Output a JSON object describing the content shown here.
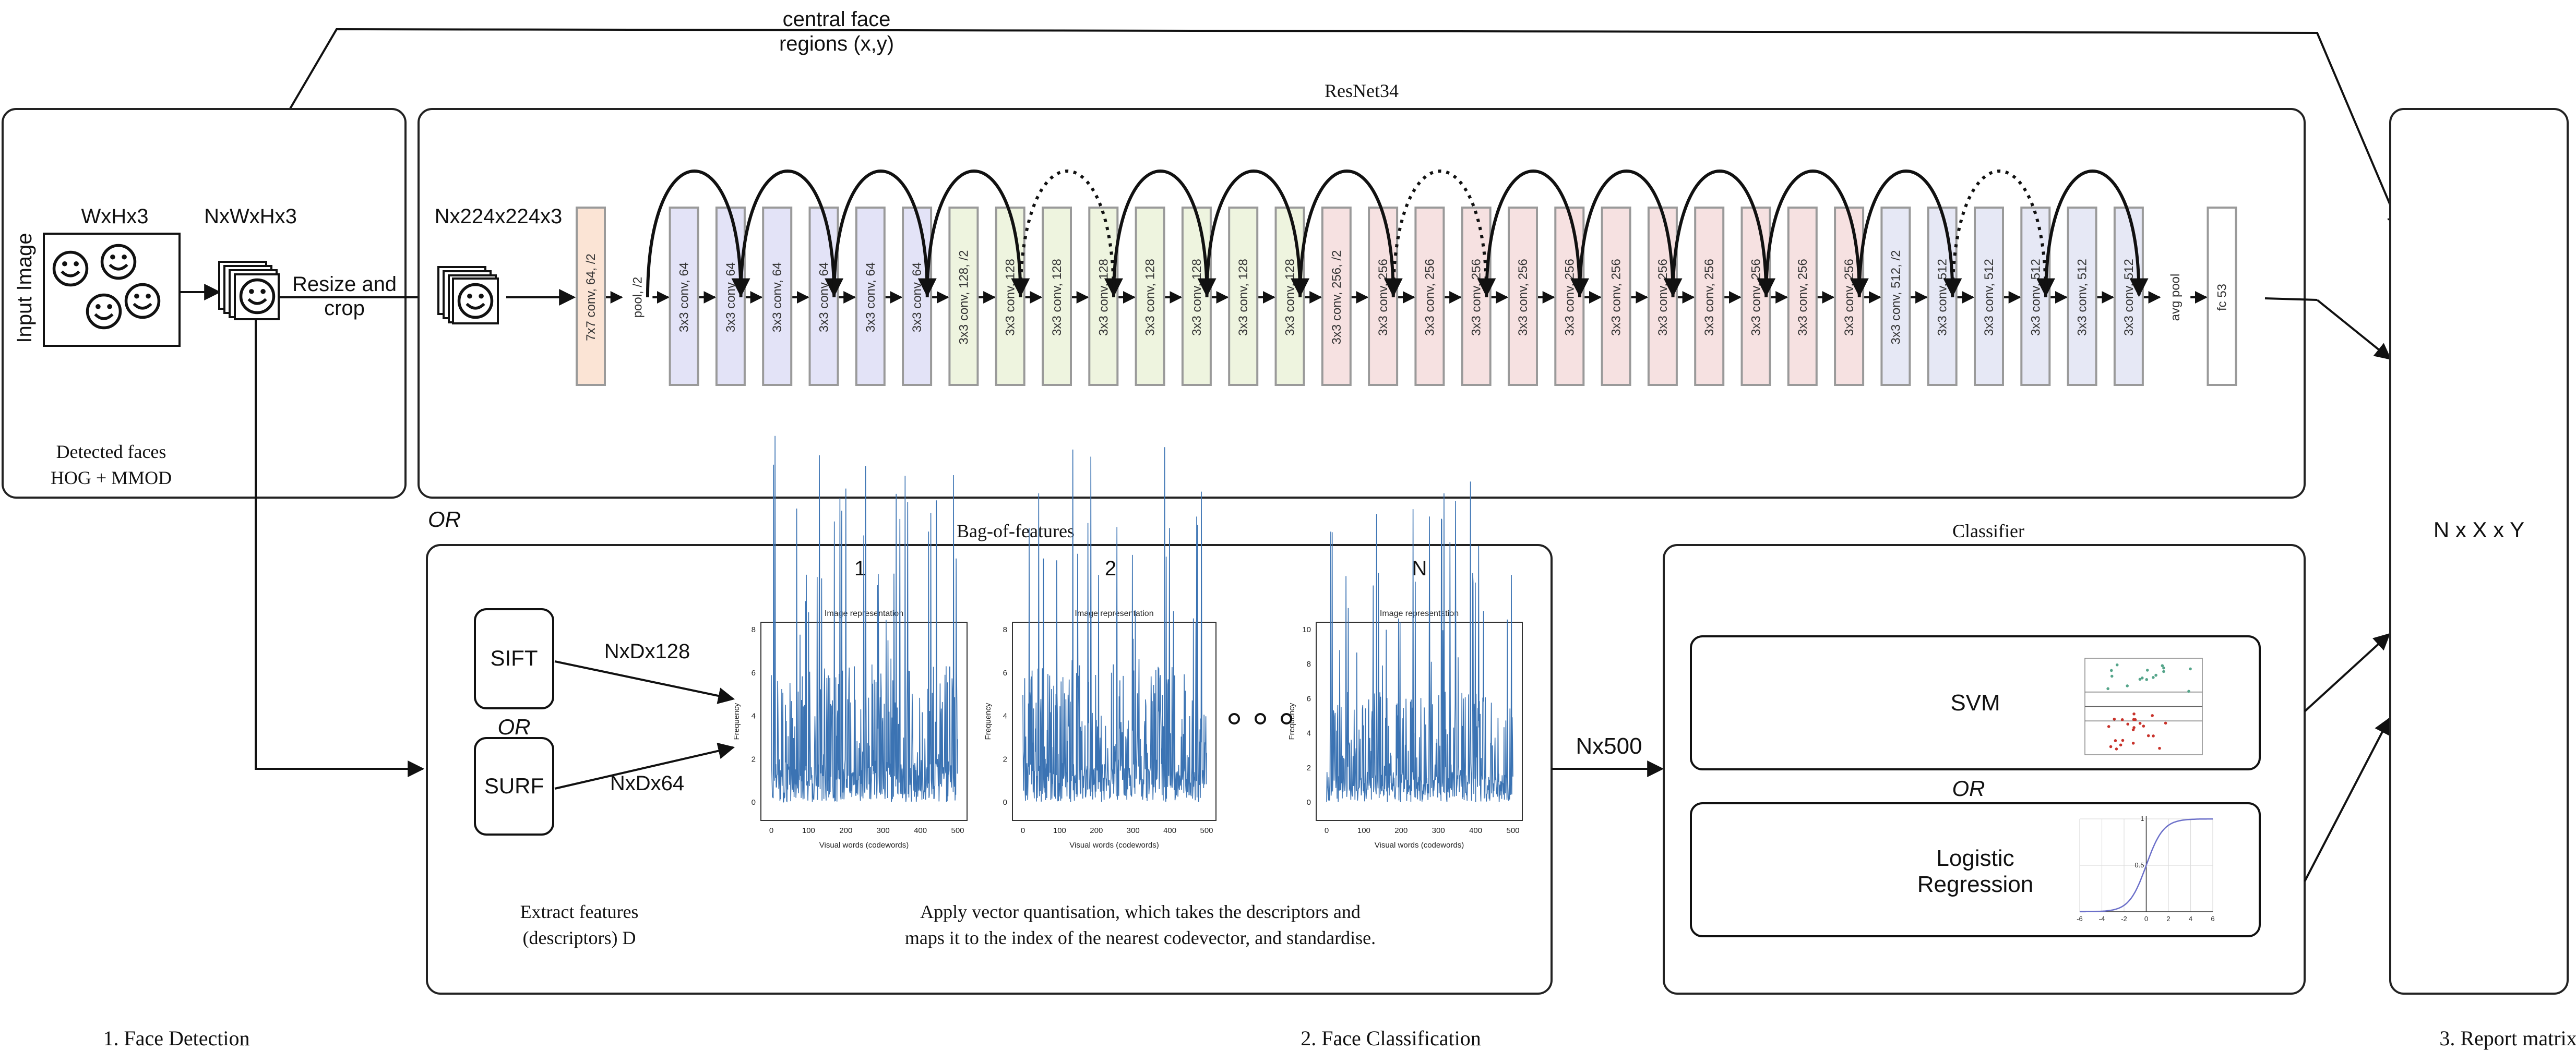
{
  "top": {
    "central_face_line1": "central face",
    "central_face_line2": "regions (x,y)"
  },
  "detection": {
    "input_image": "Input Image",
    "wxhx3": "WxHx3",
    "nxwxhx3": "NxWxHx3",
    "resize1": "Resize and",
    "resize2": "crop",
    "detected1": "Detected faces",
    "detected2": "HOG + MMOD"
  },
  "resnet": {
    "title": "ResNet34",
    "input_size": "Nx224x224x3",
    "colors": {
      "first": "#fbe4d5",
      "g64": "#e3e3f7",
      "g128": "#eef4df",
      "g256": "#f6e1e1",
      "g512": "#e6e8f5"
    },
    "layers": [
      {
        "label": "7x7 conv, 64, /2",
        "group": "first"
      },
      {
        "label": "pool, /2",
        "group": "text"
      },
      {
        "label": "3x3 conv, 64",
        "group": "g64"
      },
      {
        "label": "3x3 conv, 64",
        "group": "g64"
      },
      {
        "label": "3x3 conv, 64",
        "group": "g64"
      },
      {
        "label": "3x3 conv, 64",
        "group": "g64"
      },
      {
        "label": "3x3 conv, 64",
        "group": "g64"
      },
      {
        "label": "3x3 conv, 64",
        "group": "g64"
      },
      {
        "label": "3x3 conv, 128, /2",
        "group": "g128"
      },
      {
        "label": "3x3 conv, 128",
        "group": "g128"
      },
      {
        "label": "3x3 conv, 128",
        "group": "g128"
      },
      {
        "label": "3x3 conv, 128",
        "group": "g128"
      },
      {
        "label": "3x3 conv, 128",
        "group": "g128"
      },
      {
        "label": "3x3 conv, 128",
        "group": "g128"
      },
      {
        "label": "3x3 conv, 128",
        "group": "g128"
      },
      {
        "label": "3x3 conv, 128",
        "group": "g128"
      },
      {
        "label": "3x3 conv, 256, /2",
        "group": "g256"
      },
      {
        "label": "3x3 conv, 256",
        "group": "g256"
      },
      {
        "label": "3x3 conv, 256",
        "group": "g256"
      },
      {
        "label": "3x3 conv, 256",
        "group": "g256"
      },
      {
        "label": "3x3 conv, 256",
        "group": "g256"
      },
      {
        "label": "3x3 conv, 256",
        "group": "g256"
      },
      {
        "label": "3x3 conv, 256",
        "group": "g256"
      },
      {
        "label": "3x3 conv, 256",
        "group": "g256"
      },
      {
        "label": "3x3 conv, 256",
        "group": "g256"
      },
      {
        "label": "3x3 conv, 256",
        "group": "g256"
      },
      {
        "label": "3x3 conv, 256",
        "group": "g256"
      },
      {
        "label": "3x3 conv, 256",
        "group": "g256"
      },
      {
        "label": "3x3 conv, 512, /2",
        "group": "g512"
      },
      {
        "label": "3x3 conv, 512",
        "group": "g512"
      },
      {
        "label": "3x3 conv, 512",
        "group": "g512"
      },
      {
        "label": "3x3 conv, 512",
        "group": "g512"
      },
      {
        "label": "3x3 conv, 512",
        "group": "g512"
      },
      {
        "label": "3x3 conv, 512",
        "group": "g512"
      },
      {
        "label": "avg pool",
        "group": "text"
      },
      {
        "label": "fc 53",
        "group": "fc"
      }
    ],
    "dotted_skips": [
      4,
      8,
      14
    ]
  },
  "bof": {
    "or_label": "OR",
    "title": "Bag-of-features",
    "sift": "SIFT",
    "or_mid": "OR",
    "surf": "SURF",
    "sift_dim": "NxDx128",
    "surf_dim": "NxDx64",
    "extract1": "Extract features",
    "extract2": "(descriptors) D",
    "quant1": "Apply vector quantisation, which takes the descriptors and",
    "quant2": "maps it to the index of the nearest codevector, and standardise.",
    "hist_labels": [
      "1",
      "2",
      "N"
    ],
    "hist_title": "Image representation",
    "hist_xlabel": "Visual words (codewords)",
    "hist_ylabel": "Frequency",
    "hist_xticks": [
      "0",
      "100",
      "200",
      "300",
      "400",
      "500"
    ],
    "hist_yticks_a": [
      "0",
      "2",
      "4",
      "6",
      "8"
    ],
    "hist_yticks_b": [
      "0",
      "2",
      "4",
      "6",
      "8"
    ],
    "hist_yticks_c": [
      "0",
      "2",
      "4",
      "6",
      "8",
      "10"
    ],
    "nx500": "Nx500"
  },
  "classifier": {
    "title": "Classifier",
    "svm": "SVM",
    "or_label": "OR",
    "lr1": "Logistic",
    "lr2": "Regression",
    "sig_xticks": [
      "-6",
      "-4",
      "-2",
      "0",
      "2",
      "4",
      "6"
    ],
    "sig_yticks": [
      "0.5",
      "1"
    ]
  },
  "report": {
    "label": "N x X x Y"
  },
  "footer": {
    "step1": "1. Face Detection",
    "step2": "2. Face Classification",
    "step3": "3. Report matrix"
  }
}
